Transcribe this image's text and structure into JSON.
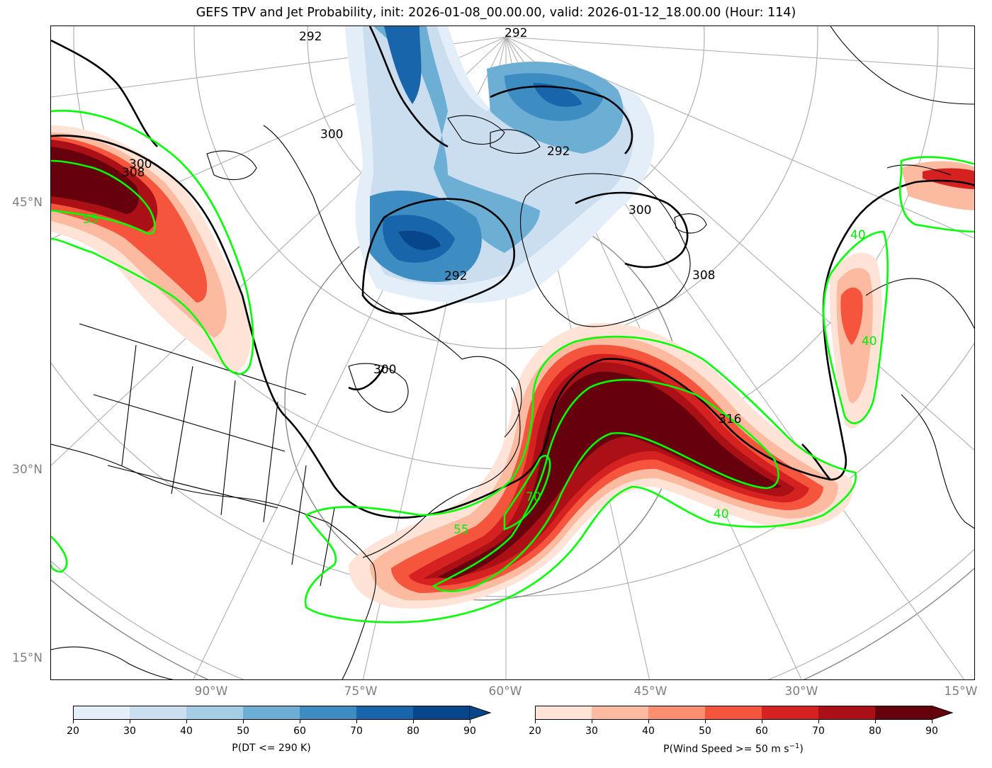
{
  "title": "GEFS TPV and Jet Probability, init: 2026-01-08_00.00.00, valid: 2026-01-12_18.00.00 (Hour: 114)",
  "lat_labels": [
    "45°N",
    "30°N",
    "15°N"
  ],
  "lon_labels": [
    "90°W",
    "75°W",
    "60°W",
    "45°W",
    "30°W",
    "15°W"
  ],
  "contour_labels": {
    "theta": [
      "292",
      "292",
      "292",
      "300",
      "300",
      "300",
      "308",
      "308",
      "316",
      "292",
      "300"
    ],
    "jet": [
      "55",
      "55",
      "70",
      "40",
      "40",
      "40"
    ]
  },
  "colorbars": {
    "left": {
      "label": "P(DT <= 290 K)",
      "ticks": [
        "20",
        "30",
        "40",
        "50",
        "60",
        "70",
        "80",
        "90"
      ],
      "colors": [
        "#e3eef9",
        "#cadef0",
        "#a5cde3",
        "#6daed5",
        "#3d8dc3",
        "#1865ab",
        "#08468b"
      ]
    },
    "right": {
      "label_main": "P(Wind Speed >= 50 m s",
      "label_sup": "−1",
      "label_end": ")",
      "ticks": [
        "20",
        "30",
        "40",
        "50",
        "60",
        "70",
        "80",
        "90"
      ],
      "colors": [
        "#fee3d6",
        "#fcbba1",
        "#fc8f6f",
        "#f5553d",
        "#d52221",
        "#aa1016",
        "#67000d"
      ]
    }
  },
  "colors": {
    "jet_contour": "#00ff00",
    "theta_contour": "#000000",
    "graticule": "#b0b0b0"
  }
}
